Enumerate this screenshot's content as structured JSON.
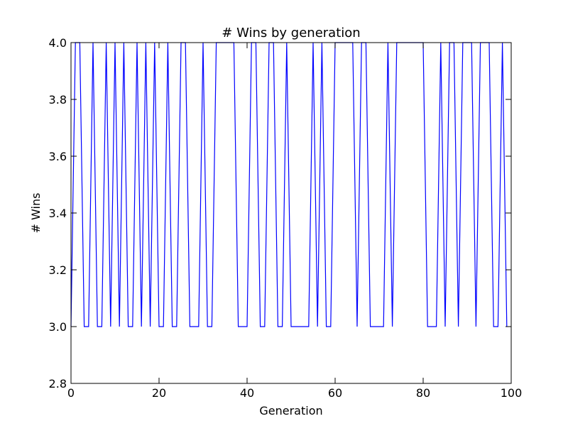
{
  "chart_data": {
    "type": "line",
    "title": "# Wins by generation",
    "xlabel": "Generation",
    "ylabel": "# Wins",
    "xlim": [
      0,
      100
    ],
    "ylim": [
      2.8,
      4.0
    ],
    "xticks": [
      0,
      20,
      40,
      60,
      80,
      100
    ],
    "yticks": [
      2.8,
      3.0,
      3.2,
      3.4,
      3.6,
      3.8,
      4.0
    ],
    "xtick_labels": [
      "0",
      "20",
      "40",
      "60",
      "80",
      "100"
    ],
    "ytick_labels": [
      "2.8",
      "3.0",
      "3.2",
      "3.4",
      "3.6",
      "3.8",
      "4.0"
    ],
    "grid": false,
    "line_color": "#0000ff",
    "series": [
      {
        "x": [
          0,
          1,
          2,
          3,
          4,
          5,
          6,
          7,
          8,
          9,
          10,
          11,
          12,
          13,
          14,
          15,
          16,
          17,
          18,
          19,
          20,
          21,
          22,
          23,
          24,
          25,
          26,
          27,
          28,
          29,
          30,
          31,
          32,
          33,
          34,
          35,
          36,
          37,
          38,
          39,
          40,
          41,
          42,
          43,
          44,
          45,
          46,
          47,
          48,
          49,
          50,
          51,
          52,
          53,
          54,
          55,
          56,
          57,
          58,
          59,
          60,
          61,
          62,
          63,
          64,
          65,
          66,
          67,
          68,
          69,
          70,
          71,
          72,
          73,
          74,
          75,
          76,
          77,
          78,
          79,
          80,
          81,
          82,
          83,
          84,
          85,
          86,
          87,
          88,
          89,
          90,
          91,
          92,
          93,
          94,
          95,
          96,
          97,
          98,
          99
        ],
        "y": [
          3,
          4,
          4,
          3,
          3,
          4,
          3,
          3,
          4,
          3,
          4,
          3,
          4,
          3,
          3,
          4,
          3,
          4,
          3,
          4,
          3,
          3,
          4,
          3,
          3,
          4,
          4,
          3,
          3,
          3,
          4,
          3,
          3,
          4,
          4,
          4,
          4,
          4,
          3,
          3,
          3,
          4,
          4,
          3,
          3,
          4,
          4,
          3,
          3,
          4,
          3,
          3,
          3,
          3,
          3,
          4,
          3,
          4,
          3,
          3,
          4,
          4,
          4,
          4,
          4,
          3,
          4,
          4,
          3,
          3,
          3,
          3,
          4,
          3,
          4,
          4,
          4,
          4,
          4,
          4,
          4,
          3,
          3,
          3,
          4,
          3,
          4,
          4,
          3,
          4,
          4,
          4,
          3,
          4,
          4,
          4,
          3,
          3,
          4,
          3
        ]
      }
    ]
  }
}
